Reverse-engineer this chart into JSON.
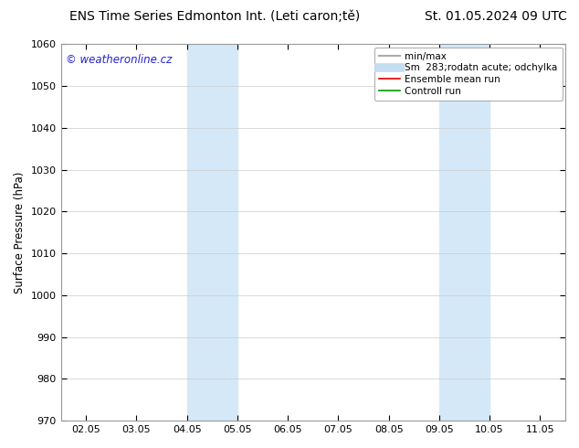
{
  "title_left": "ENS Time Series Edmonton Int. (Leti caron;tě)",
  "title_right": "St. 01.05.2024 09 UTC",
  "ylabel": "Surface Pressure (hPa)",
  "ylim": [
    970,
    1060
  ],
  "yticks": [
    970,
    980,
    990,
    1000,
    1010,
    1020,
    1030,
    1040,
    1050,
    1060
  ],
  "xtick_labels": [
    "02.05",
    "03.05",
    "04.05",
    "05.05",
    "06.05",
    "07.05",
    "08.05",
    "09.05",
    "10.05",
    "11.05"
  ],
  "xtick_positions": [
    0,
    1,
    2,
    3,
    4,
    5,
    6,
    7,
    8,
    9
  ],
  "xlim": [
    -0.5,
    9.5
  ],
  "shade_bands": [
    {
      "x_start": 2,
      "x_end": 3,
      "color": "#d4e8f8"
    },
    {
      "x_start": 7,
      "x_end": 8,
      "color": "#d4e8f8"
    }
  ],
  "watermark_text": "© weatheronline.cz",
  "watermark_color": "#2222cc",
  "watermark_fontsize": 8.5,
  "legend_entries": [
    {
      "label": "min/max",
      "color": "#aaaaaa",
      "lw": 1.5,
      "type": "line"
    },
    {
      "label": "Sm  283;rodatn acute; odchylka",
      "color": "#c5ddf0",
      "lw": 7,
      "type": "line"
    },
    {
      "label": "Ensemble mean run",
      "color": "#dd0000",
      "lw": 1.2,
      "type": "line"
    },
    {
      "label": "Controll run",
      "color": "#009900",
      "lw": 1.2,
      "type": "line"
    }
  ],
  "background_color": "#ffffff",
  "grid_color": "#cccccc",
  "title_fontsize": 10,
  "ylabel_fontsize": 8.5,
  "tick_fontsize": 8,
  "legend_fontsize": 7.5,
  "spine_color": "#999999"
}
